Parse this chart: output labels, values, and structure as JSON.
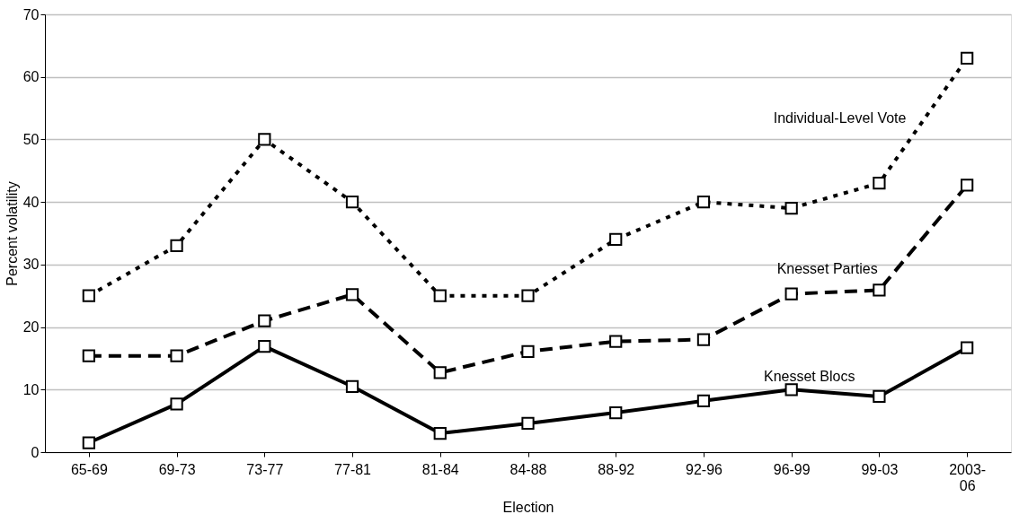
{
  "chart_data": {
    "type": "line",
    "xlabel": "Election",
    "ylabel": "Percent volatility",
    "categories": [
      "65-69",
      "69-73",
      "73-77",
      "77-81",
      "81-84",
      "84-88",
      "88-92",
      "92-96",
      "96-99",
      "99-03",
      "2003-06"
    ],
    "series": [
      {
        "name": "Individual-Level Vote",
        "color": "#000000",
        "line_style": "dotted",
        "values": [
          25,
          33,
          50,
          40,
          25,
          25,
          34,
          40,
          39,
          43,
          63
        ]
      },
      {
        "name": "Knesset Parties",
        "color": "#000000",
        "line_style": "dashed",
        "values": [
          15.4,
          15.4,
          21,
          25.2,
          12.7,
          16.1,
          17.7,
          18,
          25.3,
          25.9,
          42.7
        ]
      },
      {
        "name": "Knesset Blocs",
        "color": "#000000",
        "line_style": "solid",
        "values": [
          1.5,
          7.7,
          16.9,
          10.5,
          3,
          4.6,
          6.3,
          8.2,
          10,
          8.9,
          16.7
        ]
      }
    ],
    "ylim": [
      0,
      70
    ],
    "yticks": [
      0,
      10,
      20,
      30,
      40,
      50,
      60,
      70
    ],
    "grid": "y",
    "marker": "square",
    "legend": false
  }
}
